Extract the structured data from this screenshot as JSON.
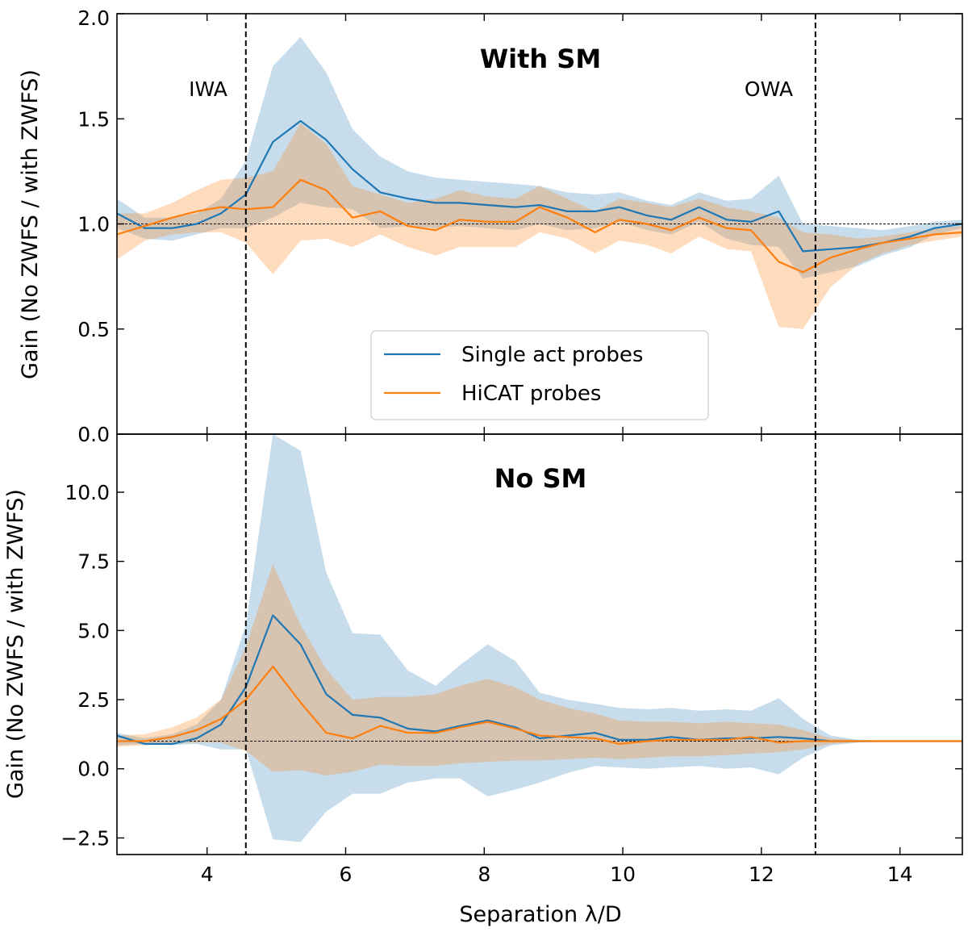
{
  "chart_data": {
    "type": "line",
    "xlabel": "Separation λ/D",
    "xlim": [
      2.7,
      14.9
    ],
    "xticks": [
      4,
      6,
      8,
      10,
      12,
      14
    ],
    "x": [
      2.7,
      3.1,
      3.5,
      3.85,
      4.2,
      4.56,
      4.95,
      5.35,
      5.72,
      6.1,
      6.5,
      6.9,
      7.3,
      7.65,
      8.05,
      8.45,
      8.8,
      9.2,
      9.6,
      9.95,
      10.35,
      10.7,
      11.1,
      11.5,
      11.85,
      12.25,
      12.6,
      13.0,
      13.4,
      13.75,
      14.15,
      14.5,
      14.9
    ],
    "guides": {
      "iwa_x": 4.56,
      "owa_x": 12.78,
      "iwa_label": "IWA",
      "owa_label": "OWA",
      "reference_y": 1.0
    },
    "legend": {
      "placement": "lower-center of top panel",
      "entries": [
        {
          "label": "Single act probes",
          "color": "#1f77b4"
        },
        {
          "label": "HiCAT probes",
          "color": "#ff7f0e"
        }
      ]
    },
    "panels": [
      {
        "title": "With SM",
        "ylabel": "Gain (No ZWFS / with ZWFS)",
        "ylim": [
          0.0,
          2.0
        ],
        "yticks": [
          0.0,
          0.5,
          1.0,
          1.5,
          2.0
        ],
        "ytick_labels": [
          "0.0",
          "0.5",
          "1.0",
          "1.5",
          "2.0"
        ],
        "series": [
          {
            "name": "Single act probes",
            "color": "#1f77b4",
            "values": [
              1.05,
              0.98,
              0.98,
              1.0,
              1.05,
              1.14,
              1.39,
              1.49,
              1.4,
              1.26,
              1.15,
              1.12,
              1.1,
              1.1,
              1.09,
              1.08,
              1.09,
              1.06,
              1.06,
              1.08,
              1.04,
              1.02,
              1.08,
              1.02,
              1.01,
              1.06,
              0.87,
              0.88,
              0.89,
              0.91,
              0.94,
              0.98,
              1.0
            ],
            "upper": [
              1.12,
              1.03,
              1.03,
              1.05,
              1.12,
              1.3,
              1.75,
              1.89,
              1.72,
              1.45,
              1.32,
              1.25,
              1.22,
              1.21,
              1.2,
              1.19,
              1.18,
              1.15,
              1.14,
              1.15,
              1.11,
              1.09,
              1.15,
              1.11,
              1.12,
              1.23,
              1.0,
              0.99,
              0.98,
              0.97,
              0.99,
              1.01,
              1.02
            ],
            "lower": [
              0.98,
              0.93,
              0.92,
              0.95,
              0.98,
              0.98,
              1.03,
              1.1,
              1.08,
              1.07,
              0.98,
              0.99,
              0.98,
              0.99,
              0.98,
              0.97,
              1.0,
              0.97,
              0.98,
              1.01,
              0.97,
              0.95,
              1.01,
              0.93,
              0.9,
              0.89,
              0.74,
              0.77,
              0.8,
              0.85,
              0.89,
              0.95,
              0.98
            ]
          },
          {
            "name": "HiCAT probes",
            "color": "#ff7f0e",
            "values": [
              0.95,
              0.99,
              1.03,
              1.06,
              1.08,
              1.07,
              1.08,
              1.21,
              1.16,
              1.03,
              1.06,
              0.99,
              0.97,
              1.02,
              1.01,
              1.01,
              1.08,
              1.03,
              0.96,
              1.02,
              1.0,
              0.97,
              1.03,
              0.98,
              0.97,
              0.82,
              0.77,
              0.84,
              0.88,
              0.91,
              0.93,
              0.95,
              0.96
            ],
            "upper": [
              1.05,
              1.05,
              1.1,
              1.16,
              1.21,
              1.22,
              1.25,
              1.48,
              1.38,
              1.18,
              1.14,
              1.1,
              1.12,
              1.16,
              1.13,
              1.12,
              1.18,
              1.12,
              1.06,
              1.12,
              1.1,
              1.08,
              1.12,
              1.08,
              1.06,
              1.03,
              0.96,
              0.95,
              0.93,
              0.94,
              0.96,
              0.98,
              0.99
            ],
            "lower": [
              0.83,
              0.92,
              0.95,
              0.96,
              0.96,
              0.91,
              0.76,
              0.92,
              0.93,
              0.89,
              0.95,
              0.89,
              0.85,
              0.89,
              0.89,
              0.89,
              0.96,
              0.93,
              0.86,
              0.92,
              0.9,
              0.86,
              0.94,
              0.88,
              0.87,
              0.51,
              0.5,
              0.7,
              0.81,
              0.86,
              0.9,
              0.92,
              0.94
            ]
          }
        ]
      },
      {
        "title": "No SM",
        "ylabel": "Gain (No ZWFS / with ZWFS)",
        "ylim": [
          -3.1,
          12.1
        ],
        "yticks": [
          -2.5,
          0.0,
          2.5,
          5.0,
          7.5,
          10.0
        ],
        "ytick_labels": [
          "−2.5",
          "0.0",
          "2.5",
          "5.0",
          "7.5",
          "10.0"
        ],
        "series": [
          {
            "name": "Single act probes",
            "color": "#1f77b4",
            "values": [
              1.2,
              0.9,
              0.9,
              1.1,
              1.6,
              2.95,
              5.55,
              4.5,
              2.7,
              1.95,
              1.85,
              1.45,
              1.35,
              1.55,
              1.75,
              1.5,
              1.1,
              1.2,
              1.3,
              1.05,
              1.05,
              1.15,
              1.05,
              1.1,
              1.1,
              1.15,
              1.1,
              1.0,
              1.0,
              1.0,
              1.0,
              1.0,
              1.0
            ],
            "upper": [
              1.3,
              1.1,
              1.25,
              1.6,
              2.5,
              5.2,
              12.1,
              11.5,
              7.1,
              4.9,
              4.85,
              3.55,
              3.0,
              3.75,
              4.5,
              3.9,
              2.75,
              2.5,
              2.35,
              2.2,
              2.15,
              2.2,
              2.1,
              2.15,
              2.1,
              2.55,
              1.8,
              1.2,
              1.05,
              1.02,
              1.01,
              1.0,
              1.0
            ],
            "lower": [
              0.85,
              0.9,
              0.85,
              0.9,
              0.7,
              0.7,
              -2.55,
              -2.65,
              -1.55,
              -0.9,
              -0.9,
              -0.5,
              -0.35,
              -0.35,
              -1.0,
              -0.75,
              -0.5,
              -0.15,
              0.1,
              0.05,
              0.0,
              0.05,
              0.1,
              0.0,
              0.05,
              -0.2,
              0.4,
              0.85,
              0.95,
              0.98,
              0.99,
              1.0,
              1.0
            ]
          },
          {
            "name": "HiCAT probes",
            "color": "#ff7f0e",
            "values": [
              1.0,
              1.0,
              1.15,
              1.4,
              1.8,
              2.5,
              3.7,
              2.4,
              1.3,
              1.1,
              1.55,
              1.3,
              1.3,
              1.5,
              1.7,
              1.45,
              1.2,
              1.15,
              1.1,
              0.9,
              1.0,
              1.05,
              1.05,
              1.05,
              1.15,
              0.95,
              1.0,
              1.0,
              1.0,
              1.0,
              1.0,
              1.0,
              1.0
            ],
            "upper": [
              1.2,
              1.25,
              1.5,
              1.85,
              2.5,
              4.4,
              7.4,
              5.2,
              3.6,
              2.5,
              2.6,
              2.6,
              2.7,
              3.0,
              3.25,
              2.95,
              2.5,
              2.2,
              2.0,
              1.75,
              1.7,
              1.7,
              1.65,
              1.7,
              1.65,
              1.6,
              1.4,
              1.1,
              1.03,
              1.01,
              1.0,
              1.0,
              1.0
            ],
            "lower": [
              0.8,
              0.85,
              0.9,
              0.95,
              0.95,
              0.65,
              -0.1,
              -0.05,
              -0.25,
              -0.1,
              0.15,
              0.1,
              0.1,
              0.2,
              0.25,
              0.3,
              0.3,
              0.35,
              0.4,
              0.35,
              0.4,
              0.45,
              0.45,
              0.5,
              0.55,
              0.6,
              0.7,
              0.9,
              0.97,
              0.99,
              1.0,
              1.0,
              1.0
            ]
          }
        ]
      }
    ]
  }
}
